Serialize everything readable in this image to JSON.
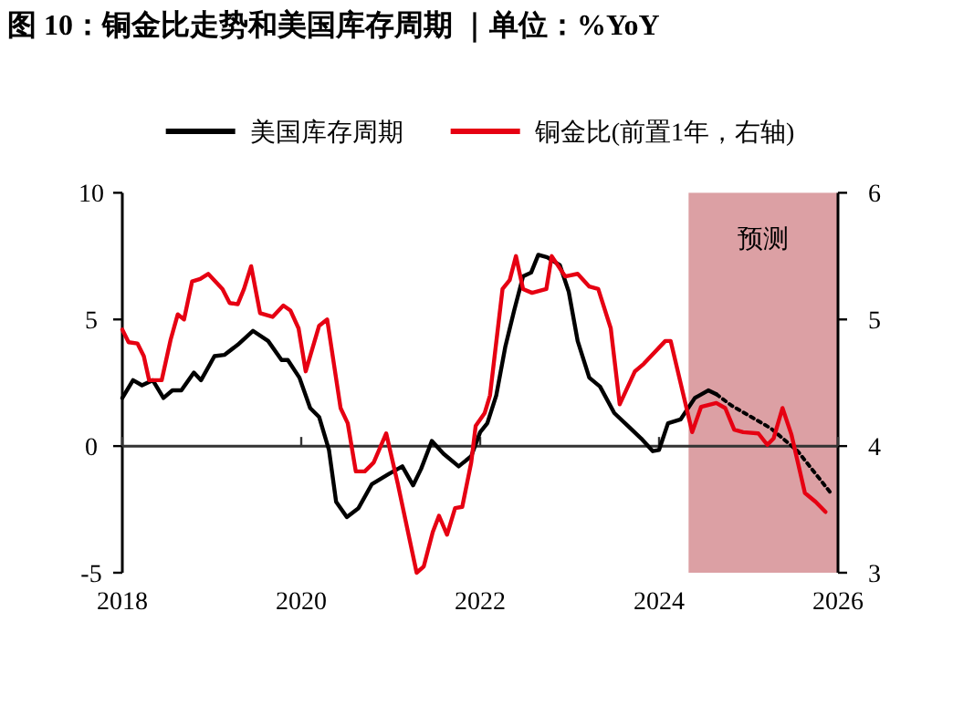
{
  "chart_data": {
    "type": "line",
    "title": "图 10：铜金比走势和美国库存周期 ｜单位：%YoY",
    "xlim": [
      2018,
      2026
    ],
    "xticks": [
      2018,
      2020,
      2022,
      2024,
      2026
    ],
    "ylim": [
      -5,
      10
    ],
    "yticks": [
      -5,
      0,
      5,
      10
    ],
    "y2lim": [
      3,
      6
    ],
    "y2ticks": [
      3,
      4,
      5,
      6
    ],
    "legend": "top",
    "bands": [
      {
        "axis": "x",
        "from": 2024.33,
        "to": 2026,
        "label": "预测",
        "color": "#dca0a4"
      }
    ],
    "series": [
      {
        "name": "美国库存周期",
        "color": "#000000",
        "line_style": "solid",
        "x": [
          2018.0,
          2018.12,
          2018.22,
          2018.34,
          2018.46,
          2018.56,
          2018.66,
          2018.8,
          2018.88,
          2019.03,
          2019.14,
          2019.29,
          2019.46,
          2019.63,
          2019.78,
          2019.85,
          2019.98,
          2020.1,
          2020.2,
          2020.31,
          2020.39,
          2020.51,
          2020.64,
          2020.79,
          2020.98,
          2021.13,
          2021.25,
          2021.34,
          2021.46,
          2021.59,
          2021.76,
          2021.9,
          2022.0,
          2022.08,
          2022.18,
          2022.28,
          2022.38,
          2022.48,
          2022.57,
          2022.65,
          2022.75,
          2022.89,
          2022.99,
          2023.09,
          2023.22,
          2023.34,
          2023.5,
          2023.65,
          2023.8,
          2023.93,
          2024.0,
          2024.1,
          2024.24,
          2024.4,
          2024.55,
          2024.64
        ],
        "values": [
          1.9,
          2.6,
          2.4,
          2.6,
          1.9,
          2.2,
          2.2,
          2.9,
          2.6,
          3.55,
          3.6,
          4.0,
          4.55,
          4.15,
          3.4,
          3.4,
          2.7,
          1.5,
          1.15,
          -0.15,
          -2.2,
          -2.8,
          -2.45,
          -1.5,
          -1.1,
          -0.8,
          -1.55,
          -0.9,
          0.2,
          -0.3,
          -0.8,
          -0.4,
          0.55,
          0.9,
          2.0,
          3.9,
          5.35,
          6.7,
          6.85,
          7.55,
          7.45,
          7.15,
          6.1,
          4.15,
          2.7,
          2.35,
          1.3,
          0.8,
          0.3,
          -0.2,
          -0.15,
          0.9,
          1.05,
          1.9,
          2.2,
          2.05
        ]
      },
      {
        "color": "#000000",
        "line_style": "dotted",
        "x": [
          2024.64,
          2024.81,
          2025.25,
          2025.55,
          2025.93
        ],
        "values": [
          2.05,
          1.6,
          0.7,
          -0.2,
          -1.9
        ]
      },
      {
        "name": "铜金比(前置1年，右轴)",
        "color": "#e60012",
        "line_style": "solid",
        "axis": "y2",
        "x": [
          2018.0,
          2018.07,
          2018.17,
          2018.24,
          2018.3,
          2018.44,
          2018.54,
          2018.62,
          2018.69,
          2018.78,
          2018.87,
          2018.96,
          2019.12,
          2019.2,
          2019.29,
          2019.36,
          2019.44,
          2019.54,
          2019.68,
          2019.8,
          2019.88,
          2019.97,
          2020.05,
          2020.2,
          2020.29,
          2020.44,
          2020.52,
          2020.61,
          2020.71,
          2020.81,
          2020.95,
          2021.08,
          2021.29,
          2021.37,
          2021.47,
          2021.54,
          2021.63,
          2021.72,
          2021.8,
          2021.9,
          2021.95,
          2022.05,
          2022.11,
          2022.25,
          2022.33,
          2022.4,
          2022.48,
          2022.58,
          2022.74,
          2022.8,
          2022.95,
          2023.09,
          2023.22,
          2023.32,
          2023.46,
          2023.56,
          2023.73,
          2023.83,
          2024.07,
          2024.13,
          2024.37,
          2024.47,
          2024.64,
          2024.74,
          2024.84,
          2024.94,
          2025.11,
          2025.21,
          2025.28,
          2025.38,
          2025.48,
          2025.63,
          2025.75,
          2025.86
        ],
        "values": [
          4.92,
          4.82,
          4.81,
          4.71,
          4.52,
          4.52,
          4.84,
          5.04,
          5.0,
          5.3,
          5.32,
          5.36,
          5.24,
          5.13,
          5.12,
          5.24,
          5.42,
          5.05,
          5.02,
          5.11,
          5.07,
          4.93,
          4.59,
          4.95,
          5.0,
          4.3,
          4.18,
          3.8,
          3.8,
          3.87,
          4.1,
          3.7,
          3.0,
          3.05,
          3.32,
          3.45,
          3.3,
          3.51,
          3.52,
          3.87,
          4.16,
          4.26,
          4.4,
          5.24,
          5.31,
          5.5,
          5.24,
          5.21,
          5.24,
          5.5,
          5.34,
          5.36,
          5.26,
          5.24,
          4.93,
          4.33,
          4.59,
          4.65,
          4.83,
          4.83,
          4.11,
          4.31,
          4.34,
          4.3,
          4.13,
          4.11,
          4.1,
          4.01,
          4.06,
          4.3,
          4.09,
          3.63,
          3.56,
          3.48
        ]
      }
    ]
  }
}
